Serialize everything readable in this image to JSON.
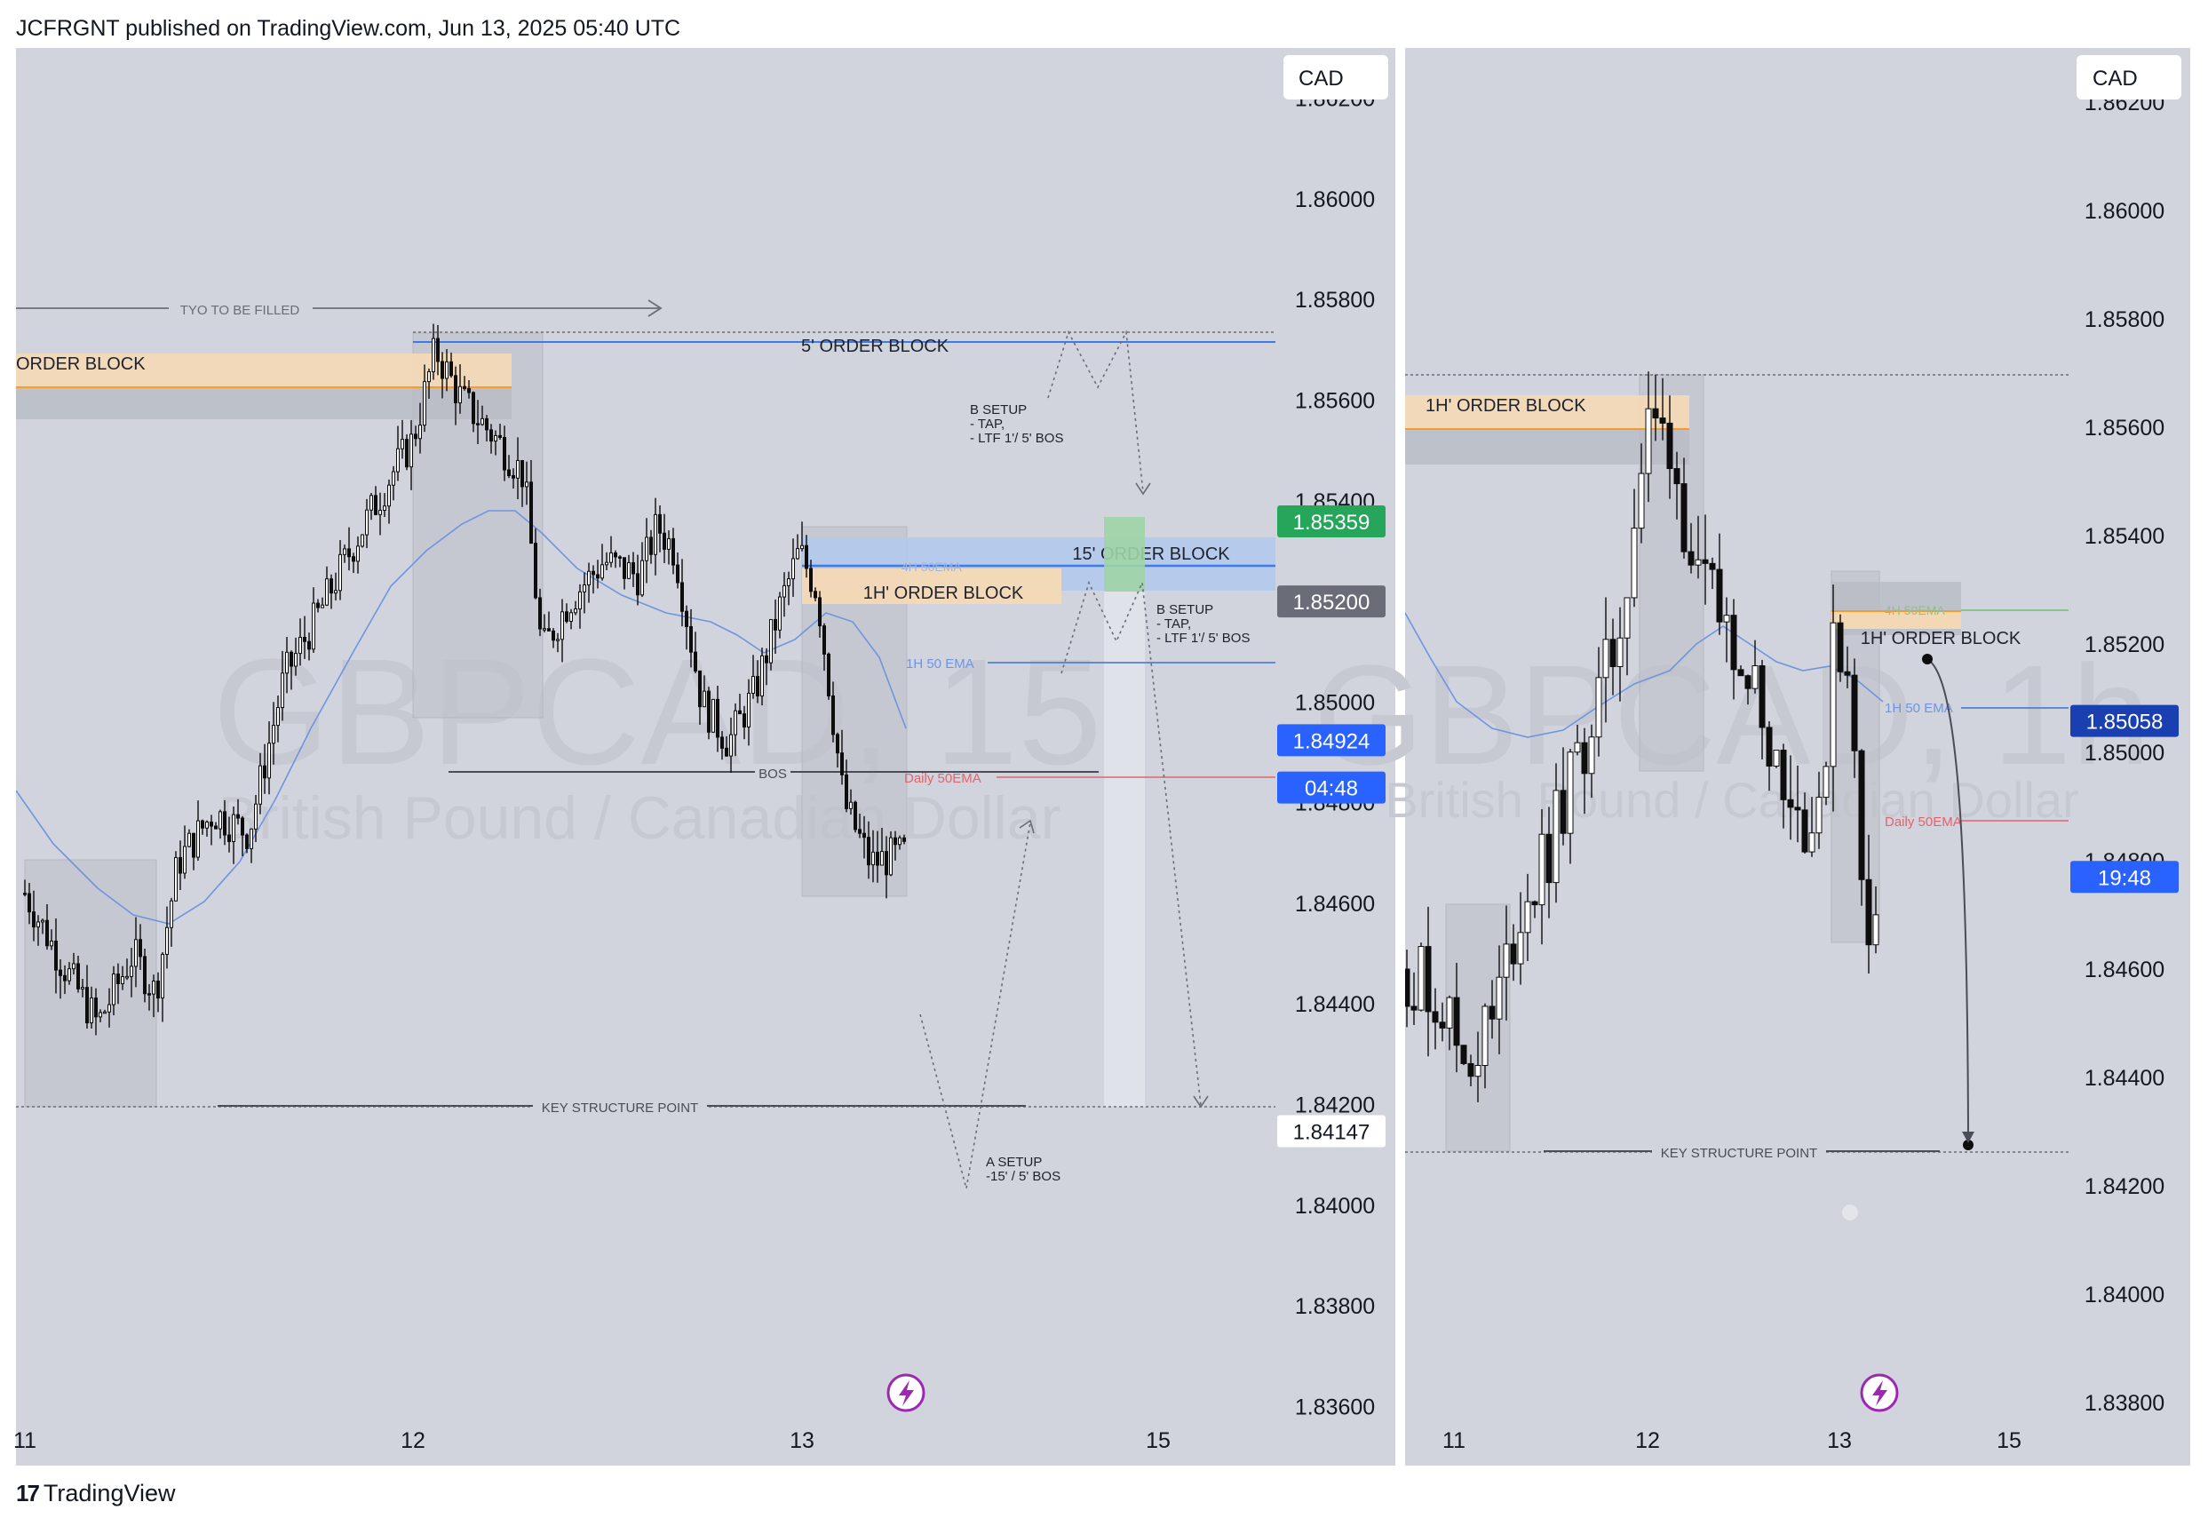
{
  "header": {
    "publisher_line": "JCFRGNT published on TradingView.com, Jun 13, 2025 05:40 UTC"
  },
  "footer": {
    "brand": "TradingView",
    "logo": "tv-logo-icon"
  },
  "colors": {
    "pane_bg": "#d1d4dc",
    "candle": "#0d0d0d",
    "ema_1h": "#5b8ae0",
    "daily_ema": "#e0646e",
    "order_block_orange": "#f5d9b5",
    "order_block_blue": "#b3c9ec",
    "order_block_green": "#9fd4a6",
    "price_badge_green": "#26a65b",
    "price_badge_gray": "#6a6d78",
    "price_badge_blue": "#2962ff",
    "price_badge_navy": "#1a3fb0",
    "lightning": "#9c27b0"
  },
  "chart_data": [
    {
      "type": "candlestick",
      "symbol": "GBPCAD",
      "timeframe": "15",
      "watermark": {
        "main": "GBPCAD, 15",
        "sub": "British Pound / Canadian Dollar"
      },
      "currency_button": "CAD",
      "ylim": [
        1.835,
        1.863
      ],
      "y_ticks": [
        "1.86200",
        "1.86000",
        "1.85800",
        "1.85600",
        "1.85400",
        "1.85200",
        "1.85000",
        "1.84800",
        "1.84600",
        "1.84400",
        "1.84200",
        "1.84000",
        "1.83800",
        "1.83600"
      ],
      "x_ticks": [
        "11",
        "12",
        "13",
        "15"
      ],
      "price_badges": [
        {
          "label": "1.85359",
          "value": 1.85359,
          "color": "green"
        },
        {
          "label": "1.85200",
          "value": 1.852,
          "color": "gray"
        },
        {
          "label": "1.84924",
          "value": 1.84924,
          "color": "blue"
        },
        {
          "label": "04:48",
          "value": 1.8483,
          "color": "blue"
        },
        {
          "label": "1.84147",
          "value": 1.84147,
          "color": "white"
        }
      ],
      "close_path": [
        [
          "11",
          1.8461
        ],
        [
          11.15,
          1.845
        ],
        [
          11.35,
          1.8436
        ],
        [
          11.45,
          1.8452
        ],
        [
          11.62,
          1.8475
        ],
        [
          11.75,
          1.8495
        ],
        [
          11.9,
          1.8515
        ],
        [
          12.0,
          1.8552
        ],
        [
          12.1,
          1.857
        ],
        [
          12.25,
          1.8555
        ],
        [
          12.38,
          1.851
        ],
        [
          12.5,
          1.8525
        ],
        [
          12.62,
          1.853
        ],
        [
          12.75,
          1.852
        ],
        [
          12.9,
          1.8495
        ],
        [
          13.0,
          1.852
        ],
        [
          13.1,
          1.853
        ],
        [
          13.2,
          1.85
        ],
        [
          13.32,
          1.8465
        ],
        [
          13.45,
          1.847
        ]
      ],
      "emas": [
        {
          "label": "1H 50 EMA",
          "value": 1.85058
        },
        {
          "label": "Daily 50EMA",
          "value": 1.8483
        },
        {
          "label": "4H 50EMA",
          "value": 1.8526
        }
      ],
      "zones": [
        {
          "label": "ORDER BLOCK",
          "top": 1.8567,
          "bottom": 1.8553
        },
        {
          "label": "5' ORDER BLOCK",
          "top": 1.8574,
          "bottom": 1.8571
        },
        {
          "label": "15' ORDER BLOCK",
          "top": 1.853,
          "bottom": 1.8519
        },
        {
          "label": "1H' ORDER BLOCK",
          "top": 1.8526,
          "bottom": 1.8518
        }
      ],
      "levels": [
        {
          "label": "TYO TO BE  FILLED",
          "value": 1.8579
        },
        {
          "label": "BOS",
          "value": 1.8487
        },
        {
          "label": "KEY STRUCTURE POINT",
          "value": 1.84147
        }
      ],
      "annotations": [
        {
          "label": "B SETUP",
          "lines": [
            "- TAP,",
            "- LTF 1'/ 5' BOS"
          ]
        },
        {
          "label": "B SETUP",
          "lines": [
            "- TAP,",
            "- LTF 1'/ 5' BOS"
          ]
        },
        {
          "label": "A SETUP",
          "lines": [
            "-15' / 5' BOS"
          ]
        }
      ]
    },
    {
      "type": "candlestick",
      "symbol": "GBPCAD",
      "timeframe": "1h",
      "watermark": {
        "main": "GBPCAD, 1h",
        "sub": "British Pound / Canadian Dollar"
      },
      "currency_button": "CAD",
      "ylim": [
        1.837,
        1.863
      ],
      "y_ticks": [
        "1.86200",
        "1.86000",
        "1.85800",
        "1.85600",
        "1.85400",
        "1.85200",
        "1.85000",
        "1.84800",
        "1.84600",
        "1.84400",
        "1.84200",
        "1.84000",
        "1.83800"
      ],
      "x_ticks": [
        "11",
        "12",
        "13",
        "15"
      ],
      "price_badges": [
        {
          "label": "1.85058",
          "value": 1.85058,
          "color": "navy"
        },
        {
          "label": "19:48",
          "value": 1.8477,
          "color": "blue"
        }
      ],
      "emas": [
        {
          "label": "1H 50 EMA",
          "value": 1.85058
        },
        {
          "label": "Daily 50EMA",
          "value": 1.8482
        },
        {
          "label": "4H 50EMA",
          "value": 1.8526
        }
      ],
      "zones": [
        {
          "label": "1H' ORDER BLOCK",
          "top": 1.857,
          "bottom": 1.8556
        }
      ],
      "levels": [
        {
          "label": "KEY STRUCTURE POINT",
          "value": 1.84147
        }
      ]
    }
  ]
}
